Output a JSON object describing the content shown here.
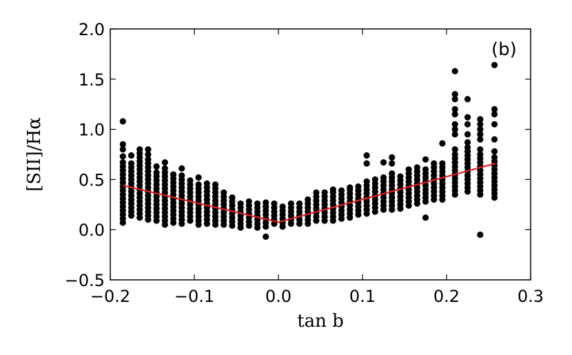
{
  "chart_data": {
    "type": "scatter",
    "xlabel": "tan b",
    "ylabel": "[SII]/Hα",
    "annotation": "(b)",
    "xlim": [
      -0.2,
      0.3
    ],
    "ylim": [
      -0.5,
      2.0
    ],
    "xticks": [
      "−0.2",
      "−0.1",
      "0.0",
      "0.1",
      "0.2",
      "0.3"
    ],
    "yticks": [
      "−0.5",
      "0.0",
      "0.5",
      "1.0",
      "1.5",
      "2.0"
    ],
    "xtick_values": [
      -0.2,
      -0.1,
      0.0,
      0.1,
      0.2,
      0.3
    ],
    "ytick_values": [
      -0.5,
      0.0,
      0.5,
      1.0,
      1.5,
      2.0
    ],
    "grid": false,
    "marker_color": "#000000",
    "line_color": "#e02020",
    "columns": [
      {
        "x": -0.185,
        "y": [
          0.07,
          0.11,
          0.15,
          0.19,
          0.23,
          0.27,
          0.31,
          0.35,
          0.39,
          0.43,
          0.47,
          0.51,
          0.55,
          0.59,
          0.63,
          0.67,
          0.73,
          0.8,
          0.85,
          1.08
        ]
      },
      {
        "x": -0.175,
        "y": [
          0.14,
          0.18,
          0.22,
          0.26,
          0.3,
          0.34,
          0.38,
          0.42,
          0.46,
          0.5,
          0.54,
          0.58,
          0.62,
          0.66,
          0.74
        ]
      },
      {
        "x": -0.165,
        "y": [
          0.12,
          0.16,
          0.2,
          0.24,
          0.28,
          0.32,
          0.36,
          0.4,
          0.44,
          0.48,
          0.52,
          0.56,
          0.6,
          0.64,
          0.68,
          0.72,
          0.76,
          0.8
        ]
      },
      {
        "x": -0.155,
        "y": [
          0.1,
          0.14,
          0.18,
          0.22,
          0.26,
          0.3,
          0.34,
          0.38,
          0.42,
          0.46,
          0.5,
          0.54,
          0.58,
          0.62,
          0.66,
          0.7,
          0.75,
          0.8
        ]
      },
      {
        "x": -0.145,
        "y": [
          0.09,
          0.13,
          0.17,
          0.21,
          0.25,
          0.29,
          0.33,
          0.37,
          0.41,
          0.45,
          0.49,
          0.53,
          0.57,
          0.63
        ]
      },
      {
        "x": -0.135,
        "y": [
          0.05,
          0.09,
          0.13,
          0.17,
          0.21,
          0.25,
          0.29,
          0.33,
          0.37,
          0.41,
          0.45,
          0.49,
          0.53,
          0.57,
          0.61,
          0.67
        ]
      },
      {
        "x": -0.125,
        "y": [
          0.07,
          0.11,
          0.15,
          0.19,
          0.23,
          0.27,
          0.31,
          0.35,
          0.39,
          0.43,
          0.47,
          0.51,
          0.55
        ]
      },
      {
        "x": -0.115,
        "y": [
          0.06,
          0.1,
          0.14,
          0.18,
          0.22,
          0.26,
          0.3,
          0.34,
          0.38,
          0.42,
          0.46,
          0.5,
          0.54,
          0.61
        ]
      },
      {
        "x": -0.105,
        "y": [
          0.09,
          0.13,
          0.17,
          0.21,
          0.25,
          0.29,
          0.33,
          0.37,
          0.41,
          0.45,
          0.49
        ]
      },
      {
        "x": -0.095,
        "y": [
          0.05,
          0.09,
          0.13,
          0.17,
          0.21,
          0.25,
          0.29,
          0.33,
          0.37,
          0.41,
          0.45,
          0.52
        ]
      },
      {
        "x": -0.085,
        "y": [
          0.06,
          0.1,
          0.14,
          0.18,
          0.22,
          0.26,
          0.3,
          0.34,
          0.38,
          0.42,
          0.46
        ]
      },
      {
        "x": -0.075,
        "y": [
          0.05,
          0.09,
          0.13,
          0.17,
          0.21,
          0.25,
          0.29,
          0.33,
          0.37,
          0.41,
          0.45
        ]
      },
      {
        "x": -0.065,
        "y": [
          0.05,
          0.09,
          0.13,
          0.17,
          0.21,
          0.25,
          0.29,
          0.33,
          0.37
        ]
      },
      {
        "x": -0.055,
        "y": [
          0.04,
          0.08,
          0.12,
          0.16,
          0.2,
          0.24,
          0.28,
          0.32
        ]
      },
      {
        "x": -0.045,
        "y": [
          0.02,
          0.06,
          0.1,
          0.14,
          0.18,
          0.22,
          0.26
        ]
      },
      {
        "x": -0.035,
        "y": [
          0.04,
          0.08,
          0.12,
          0.16,
          0.2,
          0.24,
          0.28
        ]
      },
      {
        "x": -0.025,
        "y": [
          0.02,
          0.06,
          0.1,
          0.14,
          0.18,
          0.22,
          0.26
        ]
      },
      {
        "x": -0.015,
        "y": [
          -0.07,
          0.03,
          0.07,
          0.11,
          0.15,
          0.19,
          0.23,
          0.27
        ]
      },
      {
        "x": -0.005,
        "y": [
          0.06,
          0.1,
          0.14,
          0.18,
          0.22,
          0.26
        ]
      },
      {
        "x": 0.005,
        "y": [
          0.03,
          0.07,
          0.11,
          0.15,
          0.19,
          0.23
        ]
      },
      {
        "x": 0.015,
        "y": [
          0.06,
          0.1,
          0.14,
          0.18,
          0.22,
          0.26
        ]
      },
      {
        "x": 0.025,
        "y": [
          0.06,
          0.1,
          0.14,
          0.18,
          0.22,
          0.26
        ]
      },
      {
        "x": 0.035,
        "y": [
          0.06,
          0.1,
          0.14,
          0.18,
          0.22,
          0.26,
          0.3
        ]
      },
      {
        "x": 0.045,
        "y": [
          0.09,
          0.13,
          0.17,
          0.21,
          0.25,
          0.29,
          0.33,
          0.37
        ]
      },
      {
        "x": 0.055,
        "y": [
          0.09,
          0.13,
          0.17,
          0.21,
          0.25,
          0.29,
          0.33,
          0.37
        ]
      },
      {
        "x": 0.065,
        "y": [
          0.09,
          0.13,
          0.17,
          0.21,
          0.25,
          0.29,
          0.33,
          0.37,
          0.4
        ]
      },
      {
        "x": 0.075,
        "y": [
          0.11,
          0.15,
          0.19,
          0.23,
          0.27,
          0.31,
          0.35,
          0.39
        ]
      },
      {
        "x": 0.085,
        "y": [
          0.12,
          0.16,
          0.2,
          0.24,
          0.28,
          0.32,
          0.36,
          0.4,
          0.42
        ]
      },
      {
        "x": 0.095,
        "y": [
          0.15,
          0.19,
          0.23,
          0.27,
          0.31,
          0.35,
          0.39,
          0.43
        ]
      },
      {
        "x": 0.105,
        "y": [
          0.16,
          0.2,
          0.24,
          0.28,
          0.32,
          0.36,
          0.4,
          0.44,
          0.48,
          0.66,
          0.74
        ]
      },
      {
        "x": 0.115,
        "y": [
          0.18,
          0.22,
          0.26,
          0.3,
          0.34,
          0.38,
          0.42,
          0.46,
          0.5
        ]
      },
      {
        "x": 0.125,
        "y": [
          0.2,
          0.24,
          0.28,
          0.32,
          0.36,
          0.4,
          0.44,
          0.48,
          0.52,
          0.67
        ]
      },
      {
        "x": 0.135,
        "y": [
          0.2,
          0.24,
          0.28,
          0.32,
          0.36,
          0.4,
          0.44,
          0.48,
          0.52,
          0.56,
          0.66,
          0.72
        ]
      },
      {
        "x": 0.145,
        "y": [
          0.21,
          0.25,
          0.29,
          0.33,
          0.37,
          0.41,
          0.45,
          0.49,
          0.53
        ]
      },
      {
        "x": 0.155,
        "y": [
          0.24,
          0.28,
          0.32,
          0.36,
          0.4,
          0.44,
          0.48,
          0.52,
          0.56,
          0.6
        ]
      },
      {
        "x": 0.165,
        "y": [
          0.26,
          0.3,
          0.34,
          0.38,
          0.42,
          0.46,
          0.5,
          0.54,
          0.58,
          0.62
        ]
      },
      {
        "x": 0.175,
        "y": [
          0.12,
          0.28,
          0.32,
          0.36,
          0.4,
          0.44,
          0.48,
          0.52,
          0.56,
          0.6,
          0.7
        ]
      },
      {
        "x": 0.185,
        "y": [
          0.3,
          0.34,
          0.38,
          0.42,
          0.46,
          0.5,
          0.54,
          0.58,
          0.62,
          0.66
        ]
      },
      {
        "x": 0.195,
        "y": [
          0.3,
          0.34,
          0.38,
          0.42,
          0.46,
          0.5,
          0.54,
          0.58,
          0.62,
          0.66,
          0.86
        ]
      },
      {
        "x": 0.21,
        "y": [
          0.35,
          0.39,
          0.43,
          0.47,
          0.51,
          0.55,
          0.59,
          0.63,
          0.67,
          0.71,
          0.75,
          0.8,
          0.95,
          1.0,
          1.05,
          1.15,
          1.2,
          1.3,
          1.35,
          1.58
        ]
      },
      {
        "x": 0.225,
        "y": [
          0.38,
          0.42,
          0.46,
          0.5,
          0.54,
          0.58,
          0.62,
          0.66,
          0.7,
          0.74,
          0.78,
          0.82,
          0.87,
          0.95,
          1.05,
          1.12,
          1.3
        ]
      },
      {
        "x": 0.24,
        "y": [
          -0.05,
          0.35,
          0.39,
          0.43,
          0.47,
          0.51,
          0.55,
          0.59,
          0.63,
          0.67,
          0.71,
          0.75,
          0.8,
          0.9,
          0.95,
          1.0,
          1.05,
          1.1
        ]
      },
      {
        "x": 0.257,
        "y": [
          0.32,
          0.36,
          0.4,
          0.44,
          0.48,
          0.52,
          0.56,
          0.6,
          0.64,
          0.68,
          0.72,
          0.78,
          0.9,
          1.05,
          1.15,
          1.2,
          1.64
        ]
      }
    ],
    "fit_line": {
      "x": [
        -0.185,
        0.0,
        0.258
      ],
      "y": [
        0.44,
        0.075,
        0.66
      ]
    }
  }
}
